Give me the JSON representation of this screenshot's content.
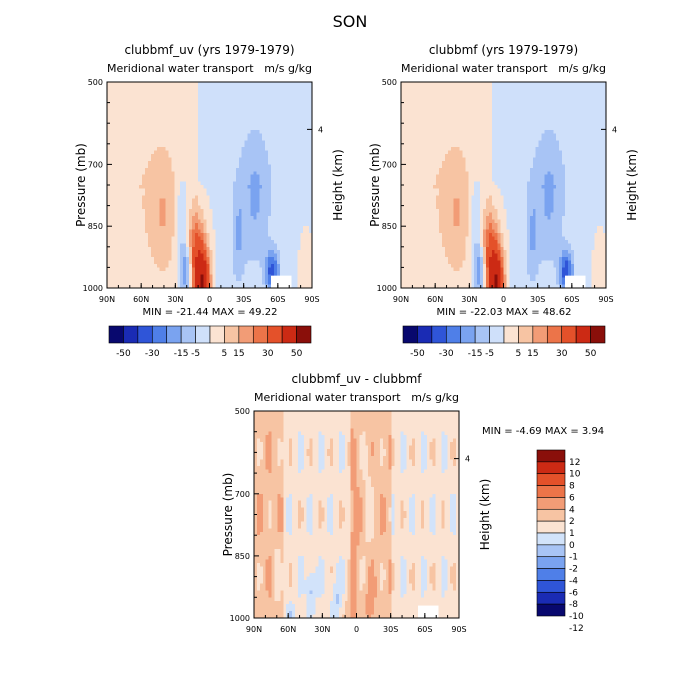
{
  "figure": {
    "season": "SON"
  },
  "palette": {
    "main": [
      "#08086e",
      "#1a2bb4",
      "#2f55d8",
      "#4f7fe8",
      "#7aa3f0",
      "#a8c4f5",
      "#cfe0fa",
      "#fbe3d2",
      "#f7c4a3",
      "#f29c76",
      "#ec7449",
      "#e4512a",
      "#cc2a14",
      "#8a0f0a"
    ],
    "diff": [
      "#08086e",
      "#1a2bb4",
      "#2f55d8",
      "#4f7fe8",
      "#7aa3f0",
      "#a8c4f5",
      "#d2e3fa",
      "#fbe3d2",
      "#f7c4a3",
      "#f29c76",
      "#ec7449",
      "#e4512a",
      "#cc2a14",
      "#8a0f0a"
    ]
  },
  "chart_data": [
    {
      "type": "heatmap",
      "title": "clubbmf_uv (yrs 1979-1979)",
      "subtitle": "Meridional water transport",
      "units": "m/s g/kg",
      "xlabel": "",
      "ylabel": "Pressure (mb)",
      "ylabel_right": "Height (km)",
      "x_ticks": [
        "90N",
        "60N",
        "30N",
        "0",
        "30S",
        "60S",
        "90S"
      ],
      "y_ticks": [
        "500",
        "700",
        "850",
        "1000"
      ],
      "right_ticks": [
        "4"
      ],
      "stats": "MIN = -21.44   MAX =  49.22",
      "min": -21.44,
      "max": 49.22,
      "colorbar_labels": [
        "-50",
        "-30",
        "-15",
        "-5",
        "5",
        "15",
        "30",
        "50"
      ],
      "features": [
        {
          "lat": 6,
          "p": 950,
          "value": 49.22
        },
        {
          "lat": 40,
          "p": 820,
          "value": 8
        },
        {
          "lat": 20,
          "p": 960,
          "value": -20
        },
        {
          "lat": -40,
          "p": 780,
          "value": -10
        },
        {
          "lat": -55,
          "p": 960,
          "value": -21.44
        }
      ]
    },
    {
      "type": "heatmap",
      "title": "clubbmf (yrs 1979-1979)",
      "subtitle": "Meridional water transport",
      "units": "m/s g/kg",
      "xlabel": "",
      "ylabel": "Pressure (mb)",
      "ylabel_right": "Height (km)",
      "x_ticks": [
        "90N",
        "60N",
        "30N",
        "0",
        "30S",
        "60S",
        "90S"
      ],
      "y_ticks": [
        "500",
        "700",
        "850",
        "1000"
      ],
      "right_ticks": [
        "4"
      ],
      "stats": "MIN = -22.03   MAX =  48.62",
      "min": -22.03,
      "max": 48.62,
      "colorbar_labels": [
        "-50",
        "-30",
        "-15",
        "-5",
        "5",
        "15",
        "30",
        "50"
      ],
      "features": [
        {
          "lat": 6,
          "p": 950,
          "value": 48.62
        },
        {
          "lat": 40,
          "p": 820,
          "value": 8
        },
        {
          "lat": 20,
          "p": 960,
          "value": -20
        },
        {
          "lat": -40,
          "p": 780,
          "value": -10
        },
        {
          "lat": -55,
          "p": 960,
          "value": -22.03
        }
      ]
    },
    {
      "type": "heatmap",
      "title": "clubbmf_uv - clubbmf",
      "subtitle": "Meridional water transport",
      "units": "m/s g/kg",
      "xlabel": "",
      "ylabel": "Pressure (mb)",
      "ylabel_right": "Height (km)",
      "x_ticks": [
        "90N",
        "60N",
        "30N",
        "0",
        "30S",
        "60S",
        "90S"
      ],
      "y_ticks": [
        "500",
        "700",
        "850",
        "1000"
      ],
      "right_ticks": [
        "4"
      ],
      "stats": "MIN =   -4.69   MAX =    3.94",
      "min": -4.69,
      "max": 3.94,
      "colorbar_labels": [
        "12",
        "10",
        "8",
        "6",
        "4",
        "2",
        "1",
        "0",
        "-1",
        "-2",
        "-4",
        "-6",
        "-8",
        "-10",
        "-12"
      ]
    }
  ]
}
